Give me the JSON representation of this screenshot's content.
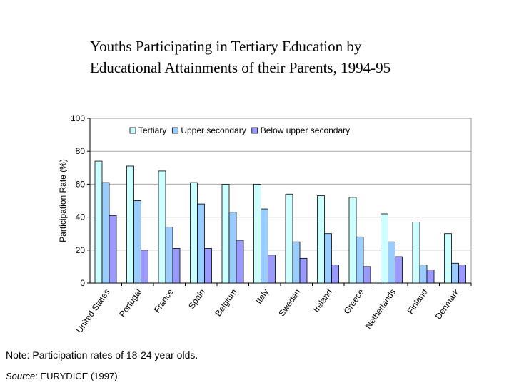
{
  "title_line1": "Youths Participating in Tertiary Education by",
  "title_line2": "Educational Attainments of their Parents, 1994-95",
  "note": "Note: Participation rates of 18-24 year olds.",
  "source_label": "Source",
  "source_text": ": EURYDICE (1997).",
  "chart_data": {
    "type": "bar",
    "title": "",
    "xlabel": "",
    "ylabel": "Participation Rate (%)",
    "ylim": [
      0,
      100
    ],
    "yticks": [
      0,
      20,
      40,
      60,
      80,
      100
    ],
    "grid": true,
    "legend_position": "top",
    "categories": [
      "United States",
      "Portugal",
      "France",
      "Spain",
      "Belgium",
      "Italy",
      "Sweden",
      "Ireland",
      "Greece",
      "Netherlands",
      "Finland",
      "Denmark"
    ],
    "series": [
      {
        "name": "Tertiary",
        "color": "#ccffff",
        "values": [
          74,
          71,
          68,
          61,
          60,
          60,
          54,
          53,
          52,
          42,
          37,
          30
        ]
      },
      {
        "name": "Upper secondary",
        "color": "#99ccff",
        "values": [
          61,
          50,
          34,
          48,
          43,
          45,
          25,
          30,
          28,
          25,
          11,
          12
        ]
      },
      {
        "name": "Below  upper secondary",
        "color": "#9999ff",
        "values": [
          41,
          20,
          21,
          21,
          26,
          17,
          15,
          11,
          10,
          16,
          8,
          11
        ]
      }
    ]
  }
}
